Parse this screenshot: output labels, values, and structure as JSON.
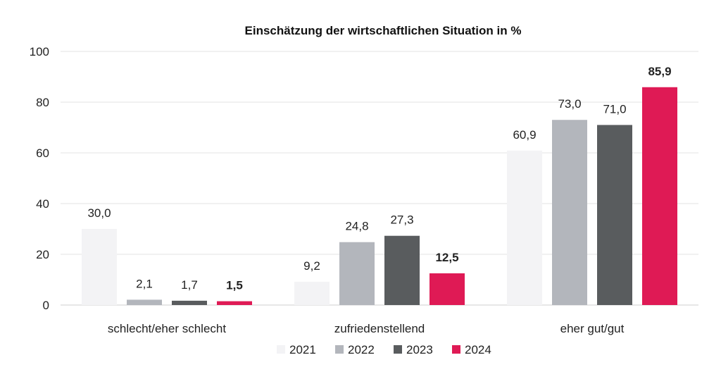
{
  "chart_data": {
    "type": "bar",
    "title": "Einschätzung der wirtschaftlichen Situation in %",
    "xlabel": "",
    "ylabel": "",
    "ylim": [
      0,
      100
    ],
    "yticks": [
      "0",
      "20",
      "40",
      "60",
      "80",
      "100"
    ],
    "grid": true,
    "legend_position": "bottom",
    "categories": [
      "schlecht/eher schlecht",
      "zufriedenstellend",
      "eher gut/gut"
    ],
    "series": [
      {
        "name": "2021",
        "color": "#f3f3f5",
        "values": [
          30.0,
          9.2,
          60.9
        ],
        "labels": [
          "30,0",
          "9,2",
          "60,9"
        ],
        "bold": false
      },
      {
        "name": "2022",
        "color": "#b3b6bc",
        "values": [
          2.1,
          24.8,
          73.0
        ],
        "labels": [
          "2,1",
          "24,8",
          "73,0"
        ],
        "bold": false
      },
      {
        "name": "2023",
        "color": "#595c5e",
        "values": [
          1.7,
          27.3,
          71.0
        ],
        "labels": [
          "1,7",
          "27,3",
          "71,0"
        ],
        "bold": false
      },
      {
        "name": "2024",
        "color": "#df1a55",
        "values": [
          1.5,
          12.5,
          85.9
        ],
        "labels": [
          "1,5",
          "12,5",
          "85,9"
        ],
        "bold": true
      }
    ]
  }
}
